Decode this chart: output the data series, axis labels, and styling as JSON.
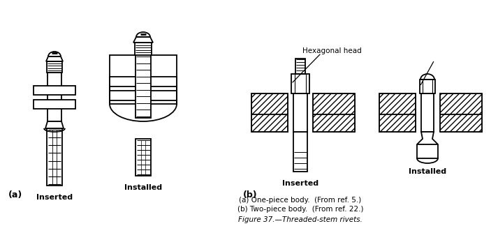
{
  "bg_color": "#ffffff",
  "figsize": [
    7.13,
    3.24
  ],
  "dpi": 100,
  "caption_lines": [
    "(a) One-piece body.  (From ref. 5.)",
    "(b) Two-piece body.  (From ref. 22.)"
  ],
  "figure_label": "Figure 37.—Threaded-stem rivets.",
  "label_a": "(a)",
  "label_b": "(b)",
  "label_inserted_left": "Inserted",
  "label_installed_left": "Installed",
  "label_inserted_right": "Inserted",
  "label_installed_right": "Installed",
  "label_hexagonal": "Hexagonal head",
  "line_color": "#000000",
  "lw": 1.3
}
